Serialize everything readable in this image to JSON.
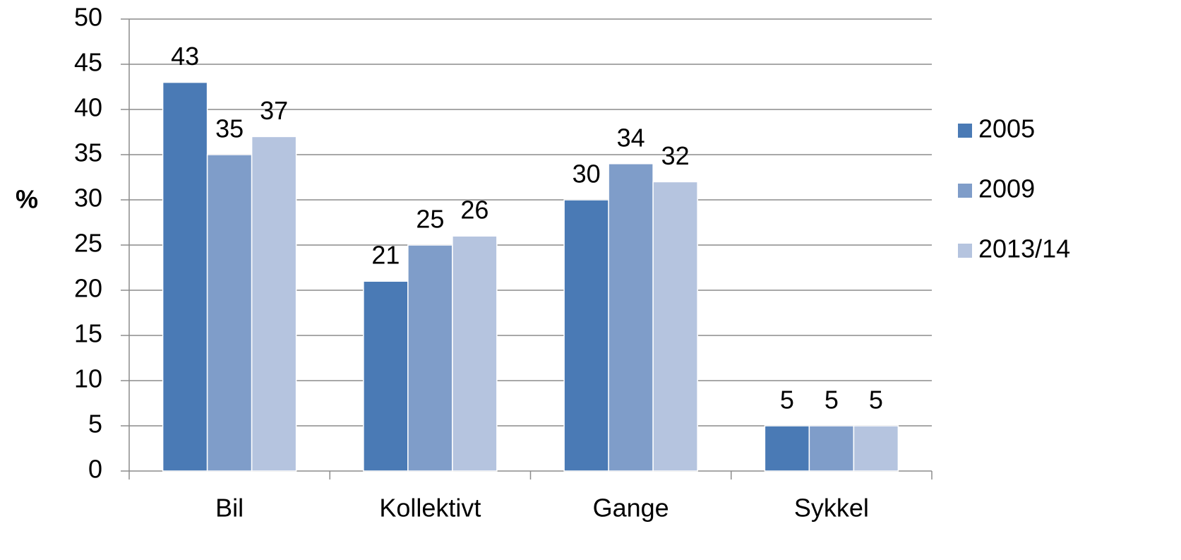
{
  "chart_data": {
    "type": "bar",
    "y_label": "%",
    "categories": [
      "Bil",
      "Kollektivt",
      "Gange",
      "Sykkel"
    ],
    "series": [
      {
        "name": "2005",
        "color": "#4a7ab5",
        "values": [
          43,
          21,
          30,
          5
        ]
      },
      {
        "name": "2009",
        "color": "#7f9dc9",
        "values": [
          35,
          25,
          34,
          5
        ]
      },
      {
        "name": "2013/14",
        "color": "#b5c4df",
        "values": [
          37,
          26,
          32,
          5
        ]
      }
    ],
    "ylim": [
      0,
      50
    ],
    "yticks": [
      0,
      5,
      10,
      15,
      20,
      25,
      30,
      35,
      40,
      45,
      50
    ],
    "grid": true,
    "legend": "right"
  }
}
